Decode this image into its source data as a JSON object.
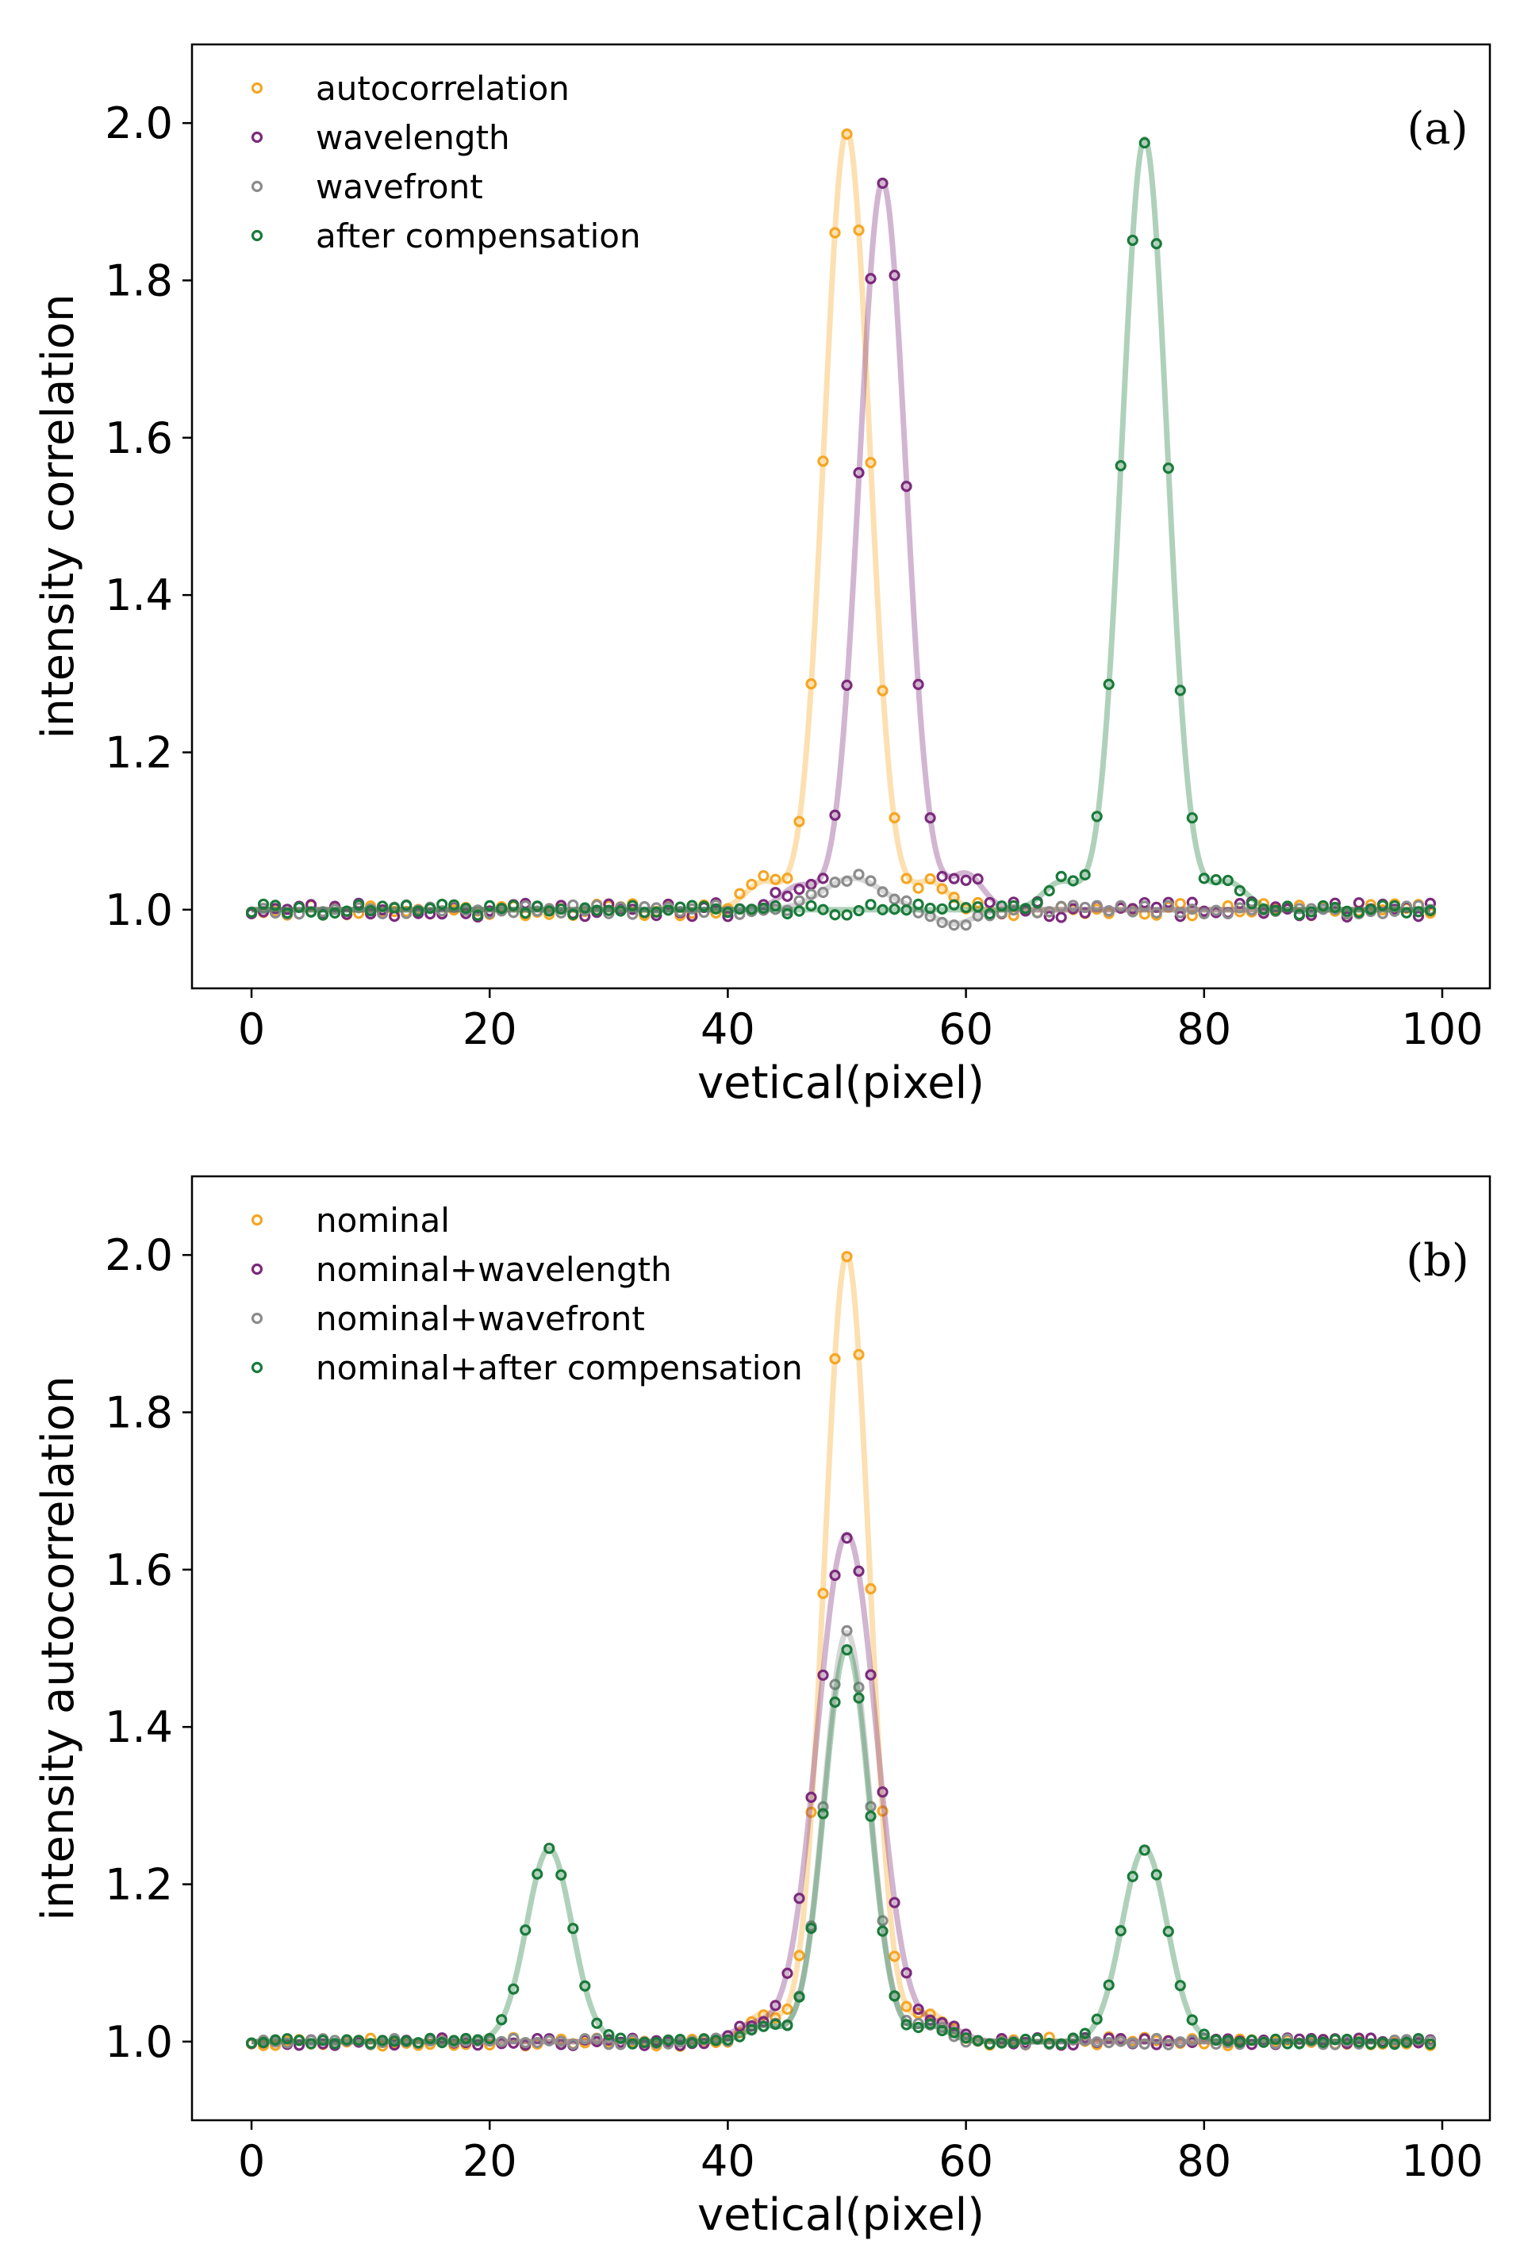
{
  "chart_data": [
    {
      "type": "scatter",
      "panel_label": "(a)",
      "xlabel": "vetical(pixel)",
      "ylabel": "intensity correlation",
      "xlim": [
        -5,
        104
      ],
      "ylim": [
        0.9,
        2.1
      ],
      "xticks": [
        0,
        20,
        40,
        60,
        80,
        100
      ],
      "yticks": [
        1.0,
        1.2,
        1.4,
        1.6,
        1.8,
        2.0
      ],
      "xtick_labels": [
        "0",
        "20",
        "40",
        "60",
        "80",
        "100"
      ],
      "ytick_labels": [
        "1.0",
        "1.2",
        "1.4",
        "1.6",
        "1.8",
        "2.0"
      ],
      "legend_position": "top-left",
      "series": [
        {
          "name": "autocorrelation",
          "color": "#f5a623",
          "components": [
            [
              50,
              0.99,
              1.9
            ]
          ],
          "ripples": [
            [
              43,
              0.035,
              1.5
            ],
            [
              57,
              0.035,
              1.5
            ]
          ],
          "noise": 0.008,
          "seed": 11
        },
        {
          "name": "wavelength",
          "color": "#7b2a7b",
          "components": [
            [
              53,
              0.925,
              1.95
            ]
          ],
          "ripples": [
            [
              46,
              0.03,
              1.5
            ],
            [
              60,
              0.045,
              1.4
            ]
          ],
          "noise": 0.01,
          "seed": 23
        },
        {
          "name": "wavefront",
          "color": "#8c8c8c",
          "components": [
            [
              50.5,
              0.04,
              2.5
            ]
          ],
          "ripples": [
            [
              59,
              -0.018,
              1.6
            ]
          ],
          "noise": 0.006,
          "seed": 37
        },
        {
          "name": "after compensation",
          "color": "#1a7a3a",
          "components": [
            [
              75,
              0.98,
              1.9
            ]
          ],
          "ripples": [
            [
              68,
              0.035,
              1.5
            ],
            [
              82,
              0.035,
              1.5
            ]
          ],
          "noise": 0.007,
          "seed": 41
        }
      ]
    },
    {
      "type": "scatter",
      "panel_label": "(b)",
      "xlabel": "vetical(pixel)",
      "ylabel": "intensity autocorrelation",
      "xlim": [
        -5,
        104
      ],
      "ylim": [
        0.9,
        2.1
      ],
      "xticks": [
        0,
        20,
        40,
        60,
        80,
        100
      ],
      "yticks": [
        1.0,
        1.2,
        1.4,
        1.6,
        1.8,
        2.0
      ],
      "xtick_labels": [
        "0",
        "20",
        "40",
        "60",
        "80",
        "100"
      ],
      "ytick_labels": [
        "1.0",
        "1.2",
        "1.4",
        "1.6",
        "1.8",
        "2.0"
      ],
      "legend_position": "top-left",
      "series": [
        {
          "name": "nominal",
          "color": "#f5a623",
          "components": [
            [
              50,
              1.0,
              1.9
            ]
          ],
          "ripples": [
            [
              43,
              0.035,
              1.5
            ],
            [
              57,
              0.035,
              1.5
            ]
          ],
          "noise": 0.006,
          "seed": 53
        },
        {
          "name": "nominal+wavelength",
          "color": "#7b2a7b",
          "components": [
            [
              50,
              0.645,
              2.5
            ]
          ],
          "ripples": [
            [
              42,
              0.02,
              1.6
            ],
            [
              58,
              0.02,
              1.6
            ]
          ],
          "noise": 0.005,
          "seed": 67
        },
        {
          "name": "nominal+wavefront",
          "color": "#8c8c8c",
          "components": [
            [
              50,
              0.52,
              1.9
            ]
          ],
          "ripples": [
            [
              43,
              0.02,
              1.5
            ],
            [
              57,
              0.02,
              1.5
            ]
          ],
          "noise": 0.004,
          "seed": 71
        },
        {
          "name": "nominal+after compensation",
          "color": "#1a7a3a",
          "components": [
            [
              25,
              0.245,
              1.9
            ],
            [
              50,
              0.5,
              1.9
            ],
            [
              75,
              0.245,
              1.9
            ]
          ],
          "ripples": [
            [
              43,
              0.02,
              1.5
            ],
            [
              57,
              0.02,
              1.5
            ]
          ],
          "noise": 0.004,
          "seed": 89
        }
      ]
    }
  ]
}
